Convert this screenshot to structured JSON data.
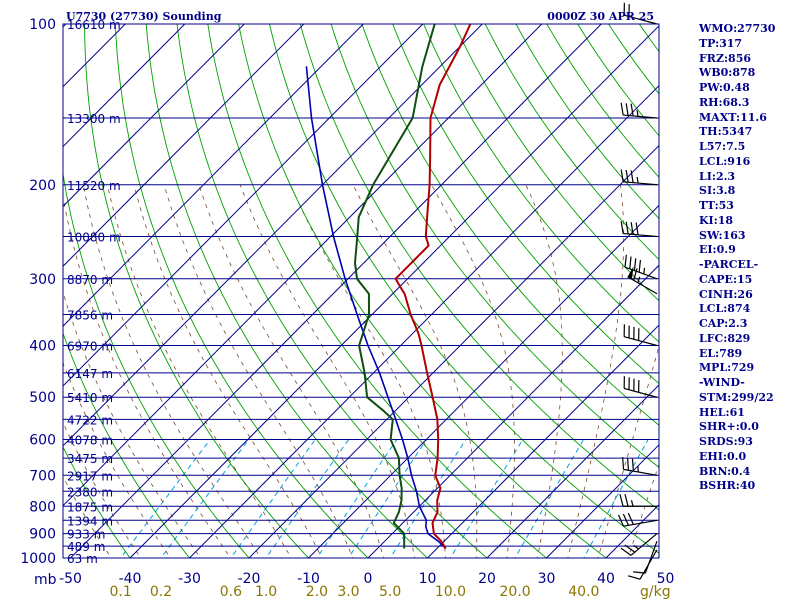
{
  "header": {
    "title_left": "U7730 (27730) Sounding",
    "title_right": "0000Z 30 APR 25"
  },
  "units": {
    "pressure_unit": "mb",
    "mixing_ratio_unit": "g/kg"
  },
  "indices": [
    "WMO:27730",
    "TP:317",
    "FRZ:856",
    "WB0:878",
    "PW:0.48",
    "RH:68.3",
    "MAXT:11.6",
    "TH:5347",
    "L57:7.5",
    "LCL:916",
    "LI:2.3",
    "SI:3.8",
    "TT:53",
    "KI:18",
    "SW:163",
    "EI:0.9",
    "-PARCEL-",
    "CAPE:15",
    "CINH:26",
    "LCL:874",
    "CAP:2.3",
    "LFC:829",
    "EL:789",
    "MPL:729",
    "-WIND-",
    "STM:299/22",
    "HEL:61",
    "SHR+:0.0",
    "SRDS:93",
    "EHI:0.0",
    "BRN:0.4",
    "BSHR:40"
  ],
  "colors": {
    "frame": "#00008b",
    "isobar": "#00008b",
    "isotherm": "#00008b",
    "dry_adiabat": "#00a000",
    "moist_adiabat": "#7b4b2a",
    "mixing_ratio": "#00a0e0",
    "temperature": "#b00000",
    "dewpoint": "#104e10",
    "parcel": "#0000b0",
    "wind_barb": "#000000",
    "mixing_label": "#8b7500"
  },
  "chart_data": {
    "type": "skew-t",
    "title": "U7730 (27730) Sounding",
    "subtitle": "0000Z 30 APR 25",
    "pressure_range_mb": [
      1000,
      100
    ],
    "pressure_ticks": [
      100,
      200,
      300,
      400,
      500,
      600,
      700,
      800,
      900,
      1000
    ],
    "height_levels": [
      {
        "p": 100,
        "label": "16610 m"
      },
      {
        "p": 150,
        "label": "13300 m"
      },
      {
        "p": 200,
        "label": "11520 m"
      },
      {
        "p": 250,
        "label": "10080 m"
      },
      {
        "p": 300,
        "label": "8870 m"
      },
      {
        "p": 350,
        "label": "7856 m"
      },
      {
        "p": 400,
        "label": "6970 m"
      },
      {
        "p": 450,
        "label": "6147 m"
      },
      {
        "p": 500,
        "label": "5410 m"
      },
      {
        "p": 550,
        "label": "4722 m"
      },
      {
        "p": 600,
        "label": "4078 m"
      },
      {
        "p": 650,
        "label": "3475 m"
      },
      {
        "p": 700,
        "label": "2917 m"
      },
      {
        "p": 750,
        "label": "2380 m"
      },
      {
        "p": 800,
        "label": "1875 m"
      },
      {
        "p": 850,
        "label": "1394 m"
      },
      {
        "p": 900,
        "label": "933 m"
      },
      {
        "p": 950,
        "label": "489 m"
      },
      {
        "p": 1000,
        "label": "63 m"
      }
    ],
    "temperature_ticks_c": [
      -50,
      -40,
      -30,
      -20,
      -10,
      0,
      10,
      20,
      30,
      40,
      50
    ],
    "mixing_ratio_ticks": [
      {
        "w": 0.1,
        "label": "0.1"
      },
      {
        "w": 0.2,
        "label": "0.2"
      },
      {
        "w": 0.6,
        "label": "0.6"
      },
      {
        "w": 1.0,
        "label": "1.0"
      },
      {
        "w": 2.0,
        "label": "2.0"
      },
      {
        "w": 3.0,
        "label": "3.0"
      },
      {
        "w": 5.0,
        "label": "5.0"
      },
      {
        "w": 10.0,
        "label": "10.0"
      },
      {
        "w": 20.0,
        "label": "20.0"
      },
      {
        "w": 40.0,
        "label": "40.0"
      }
    ],
    "temperature_profile": [
      {
        "p": 960,
        "t": 11.5
      },
      {
        "p": 930,
        "t": 9.5
      },
      {
        "p": 900,
        "t": 7.0
      },
      {
        "p": 860,
        "t": 5.0
      },
      {
        "p": 820,
        "t": 4.0
      },
      {
        "p": 780,
        "t": 2.0
      },
      {
        "p": 740,
        "t": 0.5
      },
      {
        "p": 720,
        "t": -1.0
      },
      {
        "p": 700,
        "t": -2.5
      },
      {
        "p": 650,
        "t": -5.0
      },
      {
        "p": 600,
        "t": -8.0
      },
      {
        "p": 550,
        "t": -11.5
      },
      {
        "p": 500,
        "t": -16.0
      },
      {
        "p": 450,
        "t": -21.0
      },
      {
        "p": 400,
        "t": -26.5
      },
      {
        "p": 380,
        "t": -29.0
      },
      {
        "p": 350,
        "t": -33.5
      },
      {
        "p": 320,
        "t": -38.0
      },
      {
        "p": 310,
        "t": -40.0
      },
      {
        "p": 300,
        "t": -42.0
      },
      {
        "p": 280,
        "t": -42.0
      },
      {
        "p": 260,
        "t": -42.0
      },
      {
        "p": 250,
        "t": -44.0
      },
      {
        "p": 230,
        "t": -47.0
      },
      {
        "p": 200,
        "t": -52.0
      },
      {
        "p": 180,
        "t": -56.0
      },
      {
        "p": 150,
        "t": -63.0
      },
      {
        "p": 130,
        "t": -67.0
      },
      {
        "p": 110,
        "t": -70.0
      },
      {
        "p": 100,
        "t": -72.0
      }
    ],
    "dewpoint_profile": [
      {
        "p": 960,
        "t": 4.5
      },
      {
        "p": 900,
        "t": 2.0
      },
      {
        "p": 860,
        "t": -1.5
      },
      {
        "p": 820,
        "t": -2.5
      },
      {
        "p": 780,
        "t": -4.0
      },
      {
        "p": 740,
        "t": -6.0
      },
      {
        "p": 700,
        "t": -8.5
      },
      {
        "p": 650,
        "t": -11.5
      },
      {
        "p": 600,
        "t": -16.0
      },
      {
        "p": 550,
        "t": -19.0
      },
      {
        "p": 530,
        "t": -22.0
      },
      {
        "p": 500,
        "t": -27.0
      },
      {
        "p": 450,
        "t": -31.5
      },
      {
        "p": 400,
        "t": -37.0
      },
      {
        "p": 350,
        "t": -40.5
      },
      {
        "p": 320,
        "t": -44.0
      },
      {
        "p": 300,
        "t": -48.5
      },
      {
        "p": 280,
        "t": -51.5
      },
      {
        "p": 250,
        "t": -55.5
      },
      {
        "p": 230,
        "t": -58.5
      },
      {
        "p": 200,
        "t": -61.5
      },
      {
        "p": 150,
        "t": -66.0
      },
      {
        "p": 120,
        "t": -73.0
      },
      {
        "p": 100,
        "t": -78.0
      }
    ],
    "parcel_profile": [
      {
        "p": 960,
        "t": 11.5
      },
      {
        "p": 930,
        "t": 9.0
      },
      {
        "p": 900,
        "t": 6.0
      },
      {
        "p": 874,
        "t": 4.5
      },
      {
        "p": 850,
        "t": 3.5
      },
      {
        "p": 800,
        "t": 0.0
      },
      {
        "p": 750,
        "t": -3.0
      },
      {
        "p": 700,
        "t": -6.5
      },
      {
        "p": 650,
        "t": -10.0
      },
      {
        "p": 600,
        "t": -14.0
      },
      {
        "p": 550,
        "t": -18.5
      },
      {
        "p": 500,
        "t": -23.5
      },
      {
        "p": 450,
        "t": -29.0
      },
      {
        "p": 400,
        "t": -35.5
      },
      {
        "p": 350,
        "t": -42.5
      },
      {
        "p": 300,
        "t": -50.5
      },
      {
        "p": 250,
        "t": -59.5
      },
      {
        "p": 200,
        "t": -70.0
      },
      {
        "p": 150,
        "t": -83.0
      },
      {
        "p": 120,
        "t": -92.5
      }
    ],
    "wind_barbs": [
      {
        "p": 965,
        "dir": 210,
        "spd_kt": 10
      },
      {
        "p": 930,
        "dir": 200,
        "spd_kt": 10
      },
      {
        "p": 900,
        "dir": 230,
        "spd_kt": 25
      },
      {
        "p": 850,
        "dir": 260,
        "spd_kt": 30
      },
      {
        "p": 800,
        "dir": 270,
        "spd_kt": 25
      },
      {
        "p": 700,
        "dir": 280,
        "spd_kt": 35
      },
      {
        "p": 500,
        "dir": 285,
        "spd_kt": 40
      },
      {
        "p": 400,
        "dir": 285,
        "spd_kt": 40
      },
      {
        "p": 320,
        "dir": 300,
        "spd_kt": 65
      },
      {
        "p": 300,
        "dir": 290,
        "spd_kt": 45
      },
      {
        "p": 250,
        "dir": 275,
        "spd_kt": 40
      },
      {
        "p": 200,
        "dir": 275,
        "spd_kt": 35
      },
      {
        "p": 150,
        "dir": 275,
        "spd_kt": 35
      },
      {
        "p": 100,
        "dir": 285,
        "spd_kt": 20
      }
    ],
    "grid": true
  }
}
